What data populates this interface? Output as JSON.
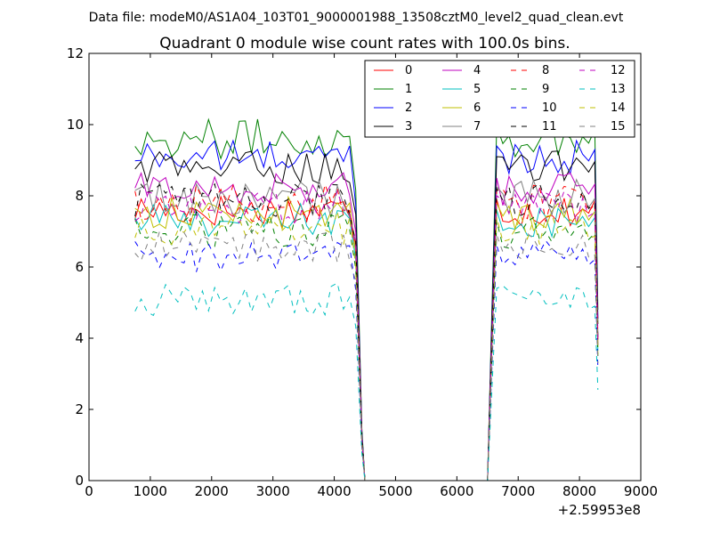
{
  "header": "Data file: modeM0/AS1A04_103T01_9000001988_13508cztM0_level2_quad_clean.evt",
  "chart_data": {
    "type": "line",
    "title": "Quadrant 0 module wise count rates with 100.0s bins.",
    "xlabel": "",
    "ylabel": "",
    "x_offset_label": "+2.59953e8",
    "xlim": [
      0,
      9000
    ],
    "ylim": [
      0,
      12
    ],
    "xticks": [
      "0",
      "1000",
      "2000",
      "3000",
      "4000",
      "5000",
      "6000",
      "7000",
      "8000",
      "9000"
    ],
    "yticks": [
      "0",
      "2",
      "4",
      "6",
      "8",
      "10",
      "12"
    ],
    "grid": false,
    "legend": {
      "placement": "top-right",
      "columns": 4
    },
    "x_segments": [
      {
        "start": 750,
        "end": 4250,
        "step": 100
      },
      {
        "start": 6650,
        "end": 8250,
        "step": 100
      }
    ],
    "drop_profile": {
      "x": [
        4350,
        4450,
        4500,
        6500,
        6550,
        6650
      ],
      "fraction": [
        0.85,
        0.15,
        0,
        0,
        0.35,
        1
      ]
    },
    "end_point": {
      "x": 8300,
      "fraction": 0.5
    },
    "series": [
      {
        "name": "0",
        "color": "#ff0000",
        "dash": "solid",
        "level": 7.6,
        "spread": 0.3
      },
      {
        "name": "1",
        "color": "#008000",
        "dash": "solid",
        "level": 9.6,
        "spread": 0.35
      },
      {
        "name": "2",
        "color": "#0000ff",
        "dash": "solid",
        "level": 9.1,
        "spread": 0.3
      },
      {
        "name": "3",
        "color": "#000000",
        "dash": "solid",
        "level": 8.8,
        "spread": 0.3
      },
      {
        "name": "4",
        "color": "#bf00bf",
        "dash": "solid",
        "level": 8.2,
        "spread": 0.3
      },
      {
        "name": "5",
        "color": "#00bfbf",
        "dash": "solid",
        "level": 7.3,
        "spread": 0.3
      },
      {
        "name": "6",
        "color": "#bfbf00",
        "dash": "solid",
        "level": 7.5,
        "spread": 0.3
      },
      {
        "name": "7",
        "color": "#808080",
        "dash": "solid",
        "level": 7.9,
        "spread": 0.35
      },
      {
        "name": "8",
        "color": "#ff0000",
        "dash": "dashed",
        "level": 7.8,
        "spread": 0.35
      },
      {
        "name": "9",
        "color": "#008000",
        "dash": "dashed",
        "level": 7.0,
        "spread": 0.3
      },
      {
        "name": "10",
        "color": "#0000ff",
        "dash": "dashed",
        "level": 6.3,
        "spread": 0.3
      },
      {
        "name": "11",
        "color": "#000000",
        "dash": "dashed",
        "level": 7.9,
        "spread": 0.3
      },
      {
        "name": "12",
        "color": "#bf00bf",
        "dash": "dashed",
        "level": 7.7,
        "spread": 0.3
      },
      {
        "name": "13",
        "color": "#00bfbf",
        "dash": "dashed",
        "level": 5.1,
        "spread": 0.3
      },
      {
        "name": "14",
        "color": "#bfbf00",
        "dash": "dashed",
        "level": 7.1,
        "spread": 0.3
      },
      {
        "name": "15",
        "color": "#808080",
        "dash": "dashed",
        "level": 6.6,
        "spread": 0.3
      }
    ]
  }
}
